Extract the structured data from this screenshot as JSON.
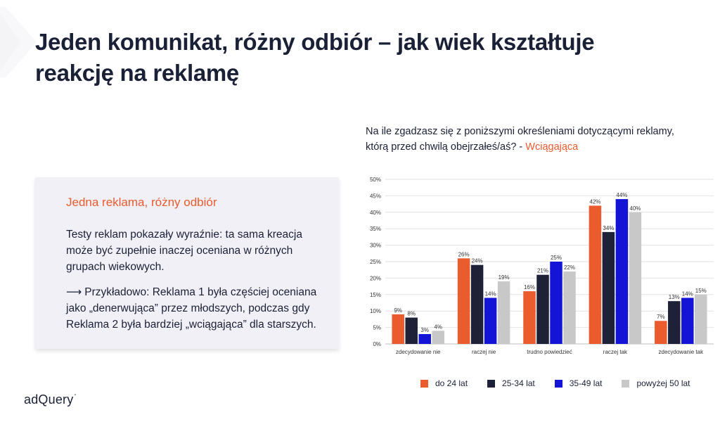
{
  "title": "Jeden komunikat, różny odbiór – jak wiek kształtuje reakcję na reklamę",
  "card": {
    "heading": "Jedna reklama, różny odbiór",
    "paragraph1": "Testy reklam pokazały wyraźnie: ta sama kreacja może być zupełnie inaczej oceniana w różnych grupach wiekowych.",
    "arrow": "⟶",
    "paragraph2": "Przykładowo: Reklama 1 była częściej oceniana jako „denerwująca” przez młodszych, podczas gdy Reklama 2 była bardziej „wciągająca” dla starszych."
  },
  "question": {
    "text": "Na ile zgadzasz się z poniższymi określeniami dotyczącymi reklamy, którą przed chwilą obejrzałeś/aś? - ",
    "highlight": "Wciągająca"
  },
  "logo": {
    "text": "adQuery",
    "mark": "°"
  },
  "colors": {
    "accent": "#ea5b2e",
    "navy": "#1a2036",
    "card_bg": "#f1f0f7"
  },
  "chart_data": {
    "type": "bar",
    "categories": [
      "zdecydowanie nie",
      "raczej nie",
      "trudno powiedzieć",
      "raczej tak",
      "zdecydowanie tak"
    ],
    "series": [
      {
        "name": "do 24 lat",
        "color": "#ea5b2e",
        "values": [
          9,
          26,
          16,
          42,
          7
        ]
      },
      {
        "name": "25-34 lat",
        "color": "#1e2238",
        "values": [
          8,
          24,
          21,
          34,
          13
        ]
      },
      {
        "name": "35-49 lat",
        "color": "#1414d6",
        "values": [
          3,
          14,
          25,
          44,
          14
        ]
      },
      {
        "name": "powyżej 50 lat",
        "color": "#c8c8c8",
        "values": [
          4,
          19,
          22,
          40,
          15
        ]
      }
    ],
    "y_ticks": [
      "0%",
      "5%",
      "10%",
      "15%",
      "20%",
      "25%",
      "30%",
      "35%",
      "40%",
      "45%",
      "50%"
    ],
    "ylim": [
      0,
      50
    ],
    "unit": "%",
    "grid": true,
    "legend_position": "bottom"
  }
}
